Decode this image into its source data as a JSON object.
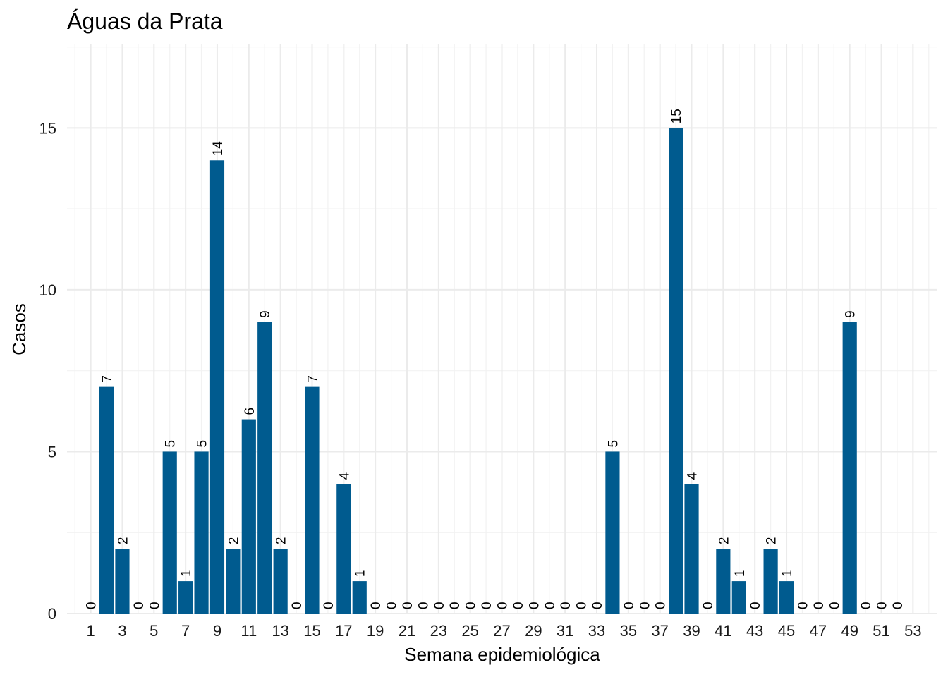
{
  "chart_data": {
    "type": "bar",
    "title": "Águas da Prata",
    "xlabel": "Semana epidemiológica",
    "ylabel": "Casos",
    "x": [
      1,
      2,
      3,
      4,
      5,
      6,
      7,
      8,
      9,
      10,
      11,
      12,
      13,
      14,
      15,
      16,
      17,
      18,
      19,
      20,
      21,
      22,
      23,
      24,
      25,
      26,
      27,
      28,
      29,
      30,
      31,
      32,
      33,
      34,
      35,
      36,
      37,
      38,
      39,
      40,
      41,
      42,
      43,
      44,
      45,
      46,
      47,
      48,
      49,
      50,
      51,
      52
    ],
    "values": [
      0,
      7,
      2,
      0,
      0,
      5,
      1,
      5,
      14,
      2,
      6,
      9,
      2,
      0,
      7,
      0,
      4,
      1,
      0,
      0,
      0,
      0,
      0,
      0,
      0,
      0,
      0,
      0,
      0,
      0,
      0,
      0,
      0,
      5,
      0,
      0,
      0,
      15,
      4,
      0,
      2,
      1,
      0,
      2,
      1,
      0,
      0,
      0,
      9,
      0,
      0,
      0
    ],
    "x_ticks": [
      1,
      3,
      5,
      7,
      9,
      11,
      13,
      15,
      17,
      19,
      21,
      23,
      25,
      27,
      29,
      31,
      33,
      35,
      37,
      39,
      41,
      43,
      45,
      47,
      49,
      51,
      53
    ],
    "y_ticks": [
      0,
      5,
      10,
      15
    ],
    "xlim": [
      -0.5,
      54.5
    ],
    "ylim": [
      0,
      17.6
    ],
    "bar_color": "#005B8F",
    "grid": true,
    "legend": "none"
  }
}
